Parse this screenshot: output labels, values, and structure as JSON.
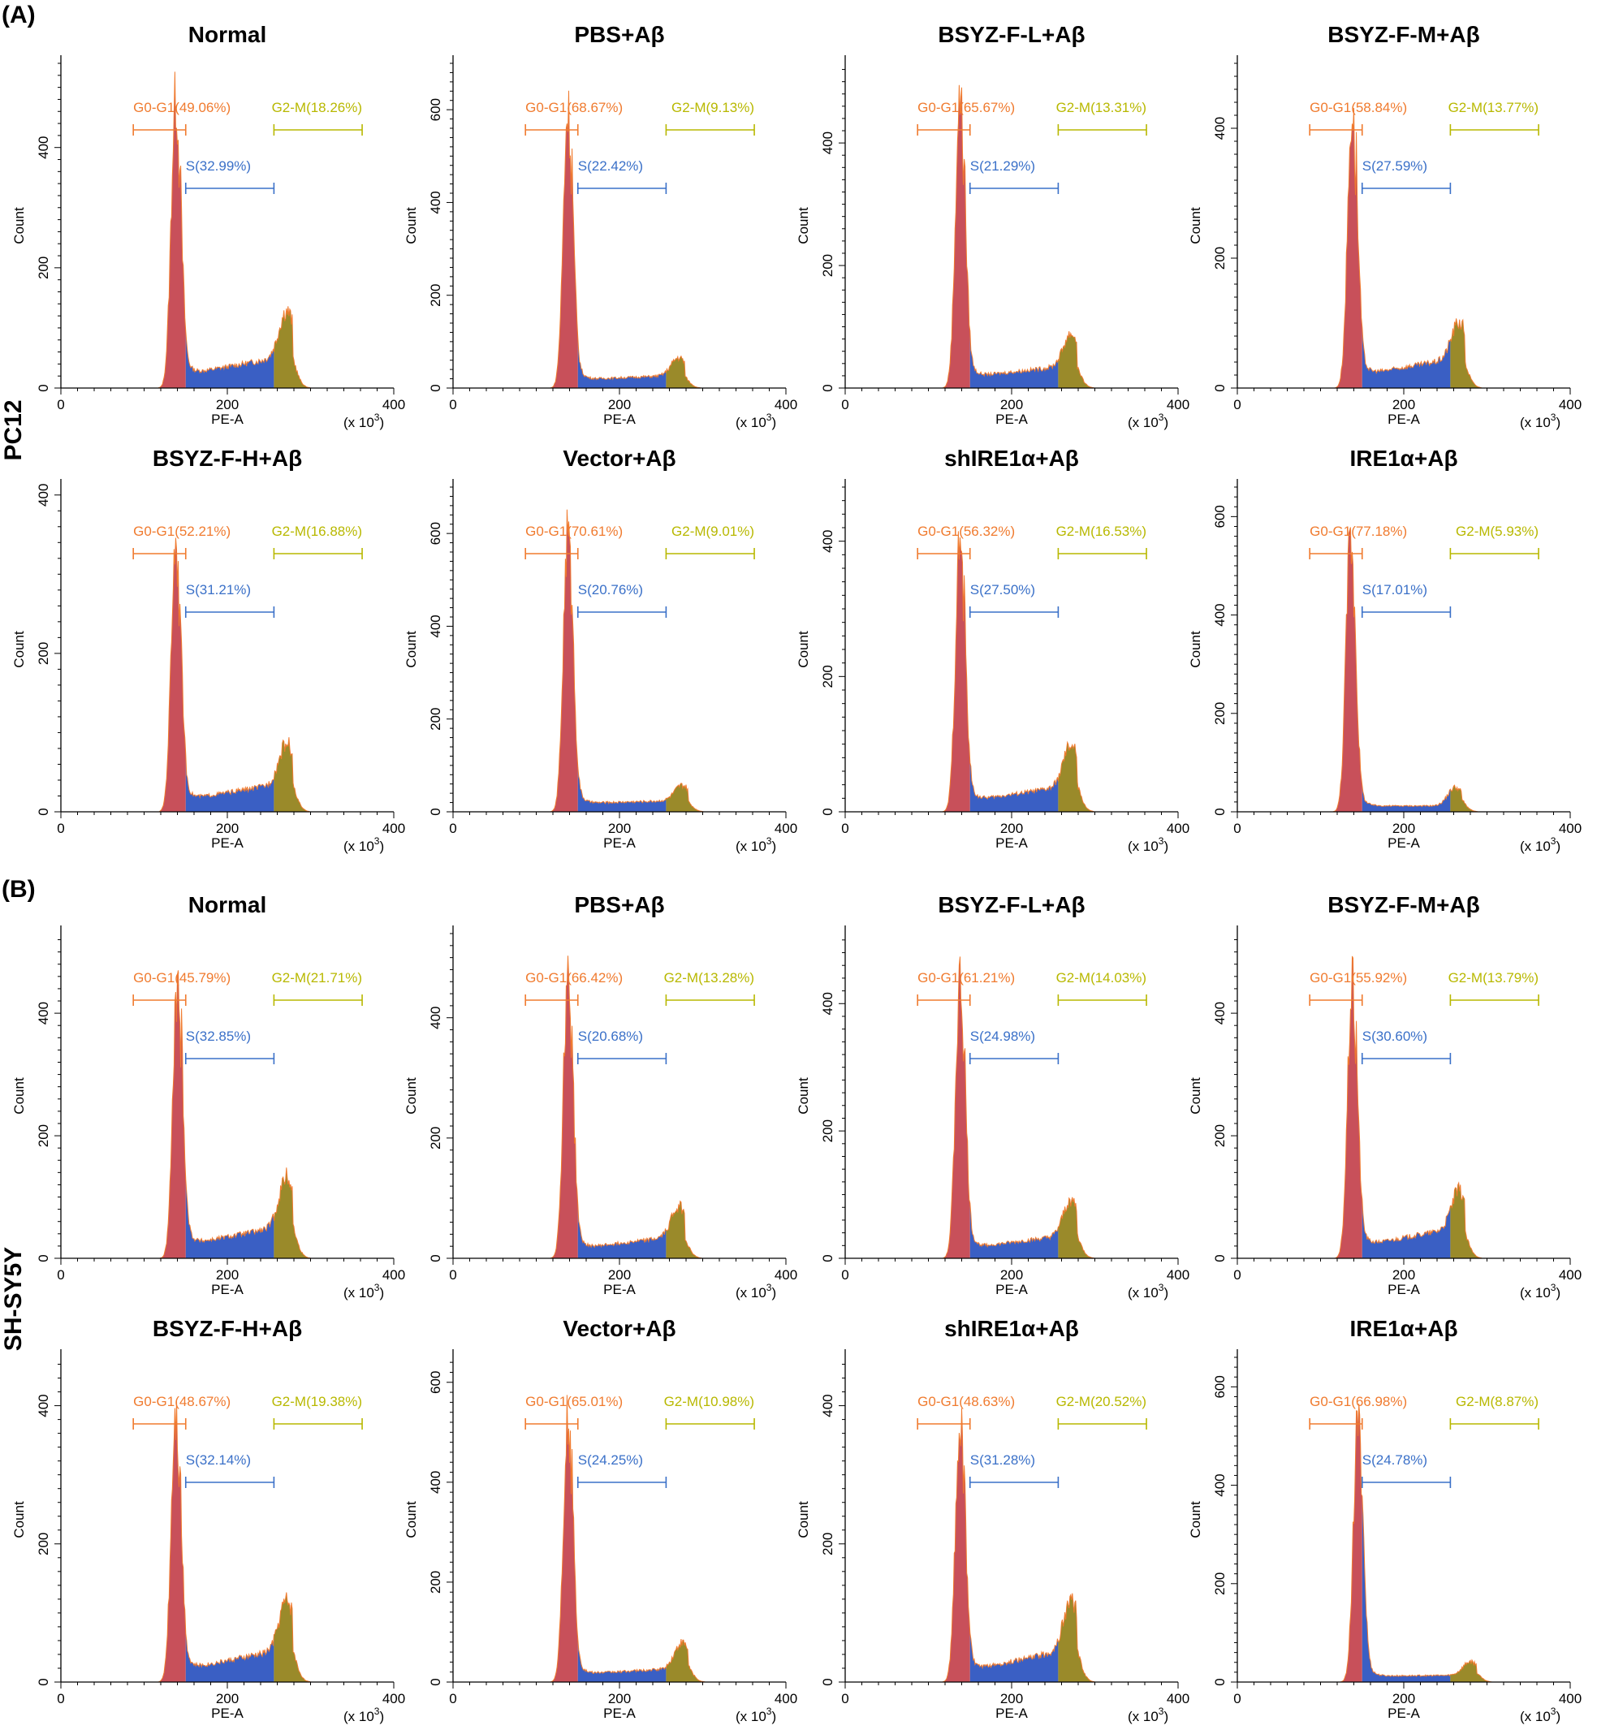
{
  "figure": {
    "section_A": {
      "letter": "(A)",
      "row_label": "PC12"
    },
    "section_B": {
      "letter": "(B)",
      "row_label": "SH-SY5Y"
    },
    "axis": {
      "xlabel": "PE-A",
      "ylabel": "Count",
      "x_scale_note": "(x 10",
      "x_scale_exp": "3",
      "x_scale_close": ")"
    },
    "gate_names": {
      "g0": "G0-G1",
      "s": "S",
      "g2": "G2-M"
    },
    "colors": {
      "g0": "#f07b2f",
      "s": "#3a70c8",
      "g2": "#b8b800",
      "g0_fill": "#c8505a",
      "s_fill": "#3a5fc4",
      "g2_fill": "#9a8a2a"
    }
  },
  "chart_data": [
    {
      "type": "area",
      "section": "A",
      "title": "Normal",
      "xlim": [
        0,
        400
      ],
      "x_ticks": [
        0,
        200,
        400
      ],
      "ylim": [
        0,
        540
      ],
      "y_ticks": [
        0,
        200,
        400
      ],
      "xlabel": "PE-A",
      "ylabel": "Count",
      "gates": {
        "g0_text": "(49.06%)",
        "s_text": "(32.99%)",
        "g2_text": "(18.26%)",
        "g0_pct": 49.06,
        "s_pct": 32.99,
        "g2_pct": 18.26,
        "g0_range": [
          87,
          150
        ],
        "s_range": [
          150,
          256
        ],
        "g2_range": [
          256,
          362
        ]
      },
      "peaks": {
        "g1_pos": 138,
        "g1_height": 480,
        "g2_pos": 271,
        "g2_height": 75,
        "s_start": 22,
        "s_end": 55,
        "tail_height": 100
      }
    },
    {
      "type": "area",
      "section": "A",
      "title": "PBS+Aβ",
      "xlim": [
        0,
        400
      ],
      "x_ticks": [
        0,
        200,
        400
      ],
      "ylim": [
        0,
        700
      ],
      "y_ticks": [
        0,
        200,
        400,
        600
      ],
      "xlabel": "PE-A",
      "ylabel": "Count",
      "gates": {
        "g0_text": "(68.67%)",
        "s_text": "(22.42%)",
        "g2_text": "(9.13%)",
        "g0_pct": 68.67,
        "s_pct": 22.42,
        "g2_pct": 9.13,
        "g0_range": [
          87,
          150
        ],
        "s_range": [
          150,
          256
        ],
        "g2_range": [
          256,
          362
        ]
      },
      "peaks": {
        "g1_pos": 138,
        "g1_height": 600,
        "g2_pos": 271,
        "g2_height": 38,
        "s_start": 18,
        "s_end": 28,
        "tail_height": 115
      }
    },
    {
      "type": "area",
      "section": "A",
      "title": "BSYZ-F-L+Aβ",
      "xlim": [
        0,
        400
      ],
      "x_ticks": [
        0,
        200,
        400
      ],
      "ylim": [
        0,
        530
      ],
      "y_ticks": [
        0,
        200,
        400
      ],
      "xlabel": "PE-A",
      "ylabel": "Count",
      "gates": {
        "g0_text": "(65.67%)",
        "s_text": "(21.29%)",
        "g2_text": "(13.31%)",
        "g0_pct": 65.67,
        "s_pct": 21.29,
        "g2_pct": 13.31,
        "g0_range": [
          87,
          150
        ],
        "s_range": [
          150,
          256
        ],
        "g2_range": [
          256,
          362
        ]
      },
      "peaks": {
        "g1_pos": 138,
        "g1_height": 475,
        "g2_pos": 271,
        "g2_height": 52,
        "s_start": 18,
        "s_end": 38,
        "tail_height": 95
      }
    },
    {
      "type": "area",
      "section": "A",
      "title": "BSYZ-F-M+Aβ",
      "xlim": [
        0,
        400
      ],
      "x_ticks": [
        0,
        200,
        400
      ],
      "ylim": [
        0,
        500
      ],
      "y_ticks": [
        0,
        200,
        400
      ],
      "xlabel": "PE-A",
      "ylabel": "Count",
      "gates": {
        "g0_text": "(58.84%)",
        "s_text": "(27.59%)",
        "g2_text": "(13.77%)",
        "g0_pct": 58.84,
        "s_pct": 27.59,
        "g2_pct": 13.77,
        "g0_range": [
          87,
          150
        ],
        "s_range": [
          150,
          256
        ],
        "g2_range": [
          256,
          362
        ]
      },
      "peaks": {
        "g1_pos": 138,
        "g1_height": 425,
        "g2_pos": 266,
        "g2_height": 55,
        "s_start": 20,
        "s_end": 48,
        "tail_height": 95
      }
    },
    {
      "type": "area",
      "section": "A",
      "title": "BSYZ-F-H+Aβ",
      "xlim": [
        0,
        400
      ],
      "x_ticks": [
        0,
        200,
        400
      ],
      "ylim": [
        0,
        410
      ],
      "y_ticks": [
        0,
        200,
        400
      ],
      "xlabel": "PE-A",
      "ylabel": "Count",
      "gates": {
        "g0_text": "(52.21%)",
        "s_text": "(31.21%)",
        "g2_text": "(16.88%)",
        "g0_pct": 52.21,
        "s_pct": 31.21,
        "g2_pct": 16.88,
        "g0_range": [
          87,
          150
        ],
        "s_range": [
          150,
          256
        ],
        "g2_range": [
          256,
          362
        ]
      },
      "peaks": {
        "g1_pos": 138,
        "g1_height": 345,
        "g2_pos": 271,
        "g2_height": 50,
        "s_start": 15,
        "s_end": 38,
        "tail_height": 70
      }
    },
    {
      "type": "area",
      "section": "A",
      "title": "Vector+Aβ",
      "xlim": [
        0,
        400
      ],
      "x_ticks": [
        0,
        200,
        400
      ],
      "ylim": [
        0,
        700
      ],
      "y_ticks": [
        0,
        200,
        400,
        600
      ],
      "xlabel": "PE-A",
      "ylabel": "Count",
      "gates": {
        "g0_text": "(70.61%)",
        "s_text": "(20.76%)",
        "g2_text": "(9.01%)",
        "g0_pct": 70.61,
        "s_pct": 20.76,
        "g2_pct": 9.01,
        "g0_range": [
          87,
          150
        ],
        "s_range": [
          150,
          256
        ],
        "g2_range": [
          256,
          362
        ]
      },
      "peaks": {
        "g1_pos": 138,
        "g1_height": 605,
        "g2_pos": 275,
        "g2_height": 32,
        "s_start": 18,
        "s_end": 25,
        "tail_height": 115
      }
    },
    {
      "type": "area",
      "section": "A",
      "title": "shIRE1α+Aβ",
      "xlim": [
        0,
        400
      ],
      "x_ticks": [
        0,
        200,
        400
      ],
      "ylim": [
        0,
        480
      ],
      "y_ticks": [
        0,
        200,
        400
      ],
      "xlabel": "PE-A",
      "ylabel": "Count",
      "gates": {
        "g0_text": "(56.32%)",
        "s_text": "(27.50%)",
        "g2_text": "(16.53%)",
        "g0_pct": 56.32,
        "s_pct": 27.5,
        "g2_pct": 16.53,
        "g0_range": [
          87,
          150
        ],
        "s_range": [
          150,
          256
        ],
        "g2_range": [
          256,
          362
        ]
      },
      "peaks": {
        "g1_pos": 138,
        "g1_height": 400,
        "g2_pos": 271,
        "g2_height": 60,
        "s_start": 16,
        "s_end": 40,
        "tail_height": 85
      }
    },
    {
      "type": "area",
      "section": "A",
      "title": "IRE1α+Aβ",
      "xlim": [
        0,
        400
      ],
      "x_ticks": [
        0,
        200,
        400
      ],
      "ylim": [
        0,
        660
      ],
      "y_ticks": [
        0,
        200,
        400,
        600
      ],
      "xlabel": "PE-A",
      "ylabel": "Count",
      "gates": {
        "g0_text": "(77.18%)",
        "s_text": "(17.01%)",
        "g2_text": "(5.93%)",
        "g0_pct": 77.18,
        "s_pct": 17.01,
        "g2_pct": 5.93,
        "g0_range": [
          87,
          150
        ],
        "s_range": [
          150,
          256
        ],
        "g2_range": [
          256,
          362
        ]
      },
      "peaks": {
        "g1_pos": 136,
        "g1_height": 560,
        "g2_pos": 262,
        "g2_height": 38,
        "s_start": 12,
        "s_end": 12,
        "tail_height": 85
      }
    },
    {
      "type": "area",
      "section": "B",
      "title": "Normal",
      "xlim": [
        0,
        400
      ],
      "x_ticks": [
        0,
        200,
        400
      ],
      "ylim": [
        0,
        530
      ],
      "y_ticks": [
        0,
        200,
        400
      ],
      "xlabel": "PE-A",
      "ylabel": "Count",
      "gates": {
        "g0_text": "(45.79%)",
        "s_text": "(32.85%)",
        "g2_text": "(21.71%)",
        "g0_pct": 45.79,
        "s_pct": 32.85,
        "g2_pct": 21.71,
        "g0_range": [
          87,
          150
        ],
        "s_range": [
          150,
          256
        ],
        "g2_range": [
          256,
          362
        ]
      },
      "peaks": {
        "g1_pos": 140,
        "g1_height": 440,
        "g2_pos": 271,
        "g2_height": 80,
        "s_start": 22,
        "s_end": 55,
        "tail_height": 100
      }
    },
    {
      "type": "area",
      "section": "B",
      "title": "PBS+Aβ",
      "xlim": [
        0,
        400
      ],
      "x_ticks": [
        0,
        200,
        400
      ],
      "ylim": [
        0,
        540
      ],
      "y_ticks": [
        0,
        200,
        400
      ],
      "xlabel": "PE-A",
      "ylabel": "Count",
      "gates": {
        "g0_text": "(66.42%)",
        "s_text": "(20.68%)",
        "g2_text": "(13.28%)",
        "g0_pct": 66.42,
        "s_pct": 20.68,
        "g2_pct": 13.28,
        "g0_range": [
          87,
          150
        ],
        "s_range": [
          150,
          256
        ],
        "g2_range": [
          256,
          362
        ]
      },
      "peaks": {
        "g1_pos": 138,
        "g1_height": 470,
        "g2_pos": 271,
        "g2_height": 50,
        "s_start": 16,
        "s_end": 38,
        "tail_height": 95
      }
    },
    {
      "type": "area",
      "section": "B",
      "title": "BSYZ-F-L+Aβ",
      "xlim": [
        0,
        400
      ],
      "x_ticks": [
        0,
        200,
        400
      ],
      "ylim": [
        0,
        510
      ],
      "y_ticks": [
        0,
        200,
        400
      ],
      "xlabel": "PE-A",
      "ylabel": "Count",
      "gates": {
        "g0_text": "(61.21%)",
        "s_text": "(24.98%)",
        "g2_text": "(14.03%)",
        "g0_pct": 61.21,
        "s_pct": 24.98,
        "g2_pct": 14.03,
        "g0_range": [
          87,
          150
        ],
        "s_range": [
          150,
          256
        ],
        "g2_range": [
          256,
          362
        ]
      },
      "peaks": {
        "g1_pos": 138,
        "g1_height": 435,
        "g2_pos": 271,
        "g2_height": 55,
        "s_start": 16,
        "s_end": 38,
        "tail_height": 90
      }
    },
    {
      "type": "area",
      "section": "B",
      "title": "BSYZ-F-M+Aβ",
      "xlim": [
        0,
        400
      ],
      "x_ticks": [
        0,
        200,
        400
      ],
      "ylim": [
        0,
        530
      ],
      "y_ticks": [
        0,
        200,
        400
      ],
      "xlabel": "PE-A",
      "ylabel": "Count",
      "gates": {
        "g0_text": "(55.92%)",
        "s_text": "(30.60%)",
        "g2_text": "(13.79%)",
        "g0_pct": 55.92,
        "s_pct": 30.6,
        "g2_pct": 13.79,
        "g0_range": [
          87,
          150
        ],
        "s_range": [
          150,
          256
        ],
        "g2_range": [
          256,
          362
        ]
      },
      "peaks": {
        "g1_pos": 138,
        "g1_height": 445,
        "g2_pos": 266,
        "g2_height": 60,
        "s_start": 20,
        "s_end": 52,
        "tail_height": 95
      }
    },
    {
      "type": "area",
      "section": "B",
      "title": "BSYZ-F-H+Aβ",
      "xlim": [
        0,
        400
      ],
      "x_ticks": [
        0,
        200,
        400
      ],
      "ylim": [
        0,
        470
      ],
      "y_ticks": [
        0,
        200,
        400
      ],
      "xlabel": "PE-A",
      "ylabel": "Count",
      "gates": {
        "g0_text": "(48.67%)",
        "s_text": "(32.14%)",
        "g2_text": "(19.38%)",
        "g0_pct": 48.67,
        "s_pct": 32.14,
        "g2_pct": 19.38,
        "g0_range": [
          87,
          150
        ],
        "s_range": [
          150,
          256
        ],
        "g2_range": [
          256,
          362
        ]
      },
      "peaks": {
        "g1_pos": 138,
        "g1_height": 395,
        "g2_pos": 271,
        "g2_height": 70,
        "s_start": 18,
        "s_end": 50,
        "tail_height": 85
      }
    },
    {
      "type": "area",
      "section": "B",
      "title": "Vector+Aβ",
      "xlim": [
        0,
        400
      ],
      "x_ticks": [
        0,
        200,
        400
      ],
      "ylim": [
        0,
        650
      ],
      "y_ticks": [
        0,
        200,
        400,
        600
      ],
      "xlabel": "PE-A",
      "ylabel": "Count",
      "gates": {
        "g0_text": "(65.01%)",
        "s_text": "(24.25%)",
        "g2_text": "(10.98%)",
        "g0_pct": 65.01,
        "s_pct": 24.25,
        "g2_pct": 10.98,
        "g0_range": [
          87,
          150
        ],
        "s_range": [
          150,
          256
        ],
        "g2_range": [
          256,
          362
        ]
      },
      "peaks": {
        "g1_pos": 138,
        "g1_height": 525,
        "g2_pos": 275,
        "g2_height": 50,
        "s_start": 16,
        "s_end": 28,
        "tail_height": 100
      }
    },
    {
      "type": "area",
      "section": "B",
      "title": "shIRE1α+Aβ",
      "xlim": [
        0,
        400
      ],
      "x_ticks": [
        0,
        200,
        400
      ],
      "ylim": [
        0,
        470
      ],
      "y_ticks": [
        0,
        200,
        400
      ],
      "xlabel": "PE-A",
      "ylabel": "Count",
      "gates": {
        "g0_text": "(48.63%)",
        "s_text": "(31.28%)",
        "g2_text": "(20.52%)",
        "g0_pct": 48.63,
        "s_pct": 31.28,
        "g2_pct": 20.52,
        "g0_range": [
          87,
          150
        ],
        "s_range": [
          150,
          256
        ],
        "g2_range": [
          256,
          362
        ]
      },
      "peaks": {
        "g1_pos": 138,
        "g1_height": 380,
        "g2_pos": 271,
        "g2_height": 70,
        "s_start": 16,
        "s_end": 50,
        "tail_height": 80
      }
    },
    {
      "type": "area",
      "section": "B",
      "title": "IRE1α+Aβ",
      "xlim": [
        0,
        400
      ],
      "x_ticks": [
        0,
        200,
        400
      ],
      "ylim": [
        0,
        660
      ],
      "y_ticks": [
        0,
        200,
        400,
        600
      ],
      "xlabel": "PE-A",
      "ylabel": "Count",
      "gates": {
        "g0_text": "(66.98%)",
        "s_text": "(24.78%)",
        "g2_text": "(8.87%)",
        "g0_pct": 66.98,
        "s_pct": 24.78,
        "g2_pct": 8.87,
        "g0_range": [
          87,
          150
        ],
        "s_range": [
          150,
          256
        ],
        "g2_range": [
          256,
          362
        ]
      },
      "peaks": {
        "g1_pos": 145,
        "g1_height": 530,
        "g2_pos": 280,
        "g2_height": 28,
        "s_start": 12,
        "s_end": 14,
        "tail_height": 90
      }
    }
  ]
}
